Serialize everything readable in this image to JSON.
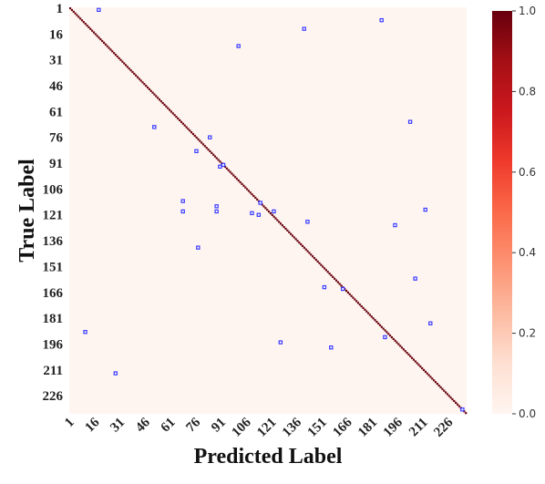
{
  "chart_data": {
    "type": "heatmap",
    "title": "",
    "xlabel": "Predicted Label",
    "ylabel": "True Label",
    "n_classes": 236,
    "x_ticks": [
      "1",
      "16",
      "31",
      "46",
      "61",
      "76",
      "91",
      "106",
      "121",
      "136",
      "151",
      "166",
      "181",
      "196",
      "211",
      "226"
    ],
    "y_ticks": [
      "1",
      "16",
      "31",
      "46",
      "61",
      "76",
      "91",
      "106",
      "121",
      "136",
      "151",
      "166",
      "181",
      "196",
      "211",
      "226"
    ],
    "colorbar": {
      "ticks": [
        "0.0",
        "0.2",
        "0.4",
        "0.6",
        "0.8",
        "1.0"
      ],
      "min": 0.0,
      "max": 1.0,
      "colormap": "Reds",
      "low_color": "#fff5f0",
      "high_color": "#67000d"
    },
    "diagonal_value": 1.0,
    "highlight_color": "#3a3aff",
    "off_diagonal_points": [
      {
        "true": 2,
        "pred": 18
      },
      {
        "true": 8,
        "pred": 186
      },
      {
        "true": 13,
        "pred": 140
      },
      {
        "true": 23,
        "pred": 101
      },
      {
        "true": 67,
        "pred": 203
      },
      {
        "true": 70,
        "pred": 51
      },
      {
        "true": 76,
        "pred": 84
      },
      {
        "true": 84,
        "pred": 76
      },
      {
        "true": 92,
        "pred": 92
      },
      {
        "true": 93,
        "pred": 90
      },
      {
        "true": 113,
        "pred": 68
      },
      {
        "true": 114,
        "pred": 114
      },
      {
        "true": 116,
        "pred": 88
      },
      {
        "true": 118,
        "pred": 212
      },
      {
        "true": 119,
        "pred": 122
      },
      {
        "true": 119,
        "pred": 68
      },
      {
        "true": 119,
        "pred": 88
      },
      {
        "true": 120,
        "pred": 109
      },
      {
        "true": 121,
        "pred": 113
      },
      {
        "true": 125,
        "pred": 142
      },
      {
        "true": 127,
        "pred": 194
      },
      {
        "true": 140,
        "pred": 77
      },
      {
        "true": 158,
        "pred": 206
      },
      {
        "true": 163,
        "pred": 152
      },
      {
        "true": 164,
        "pred": 163
      },
      {
        "true": 184,
        "pred": 215
      },
      {
        "true": 189,
        "pred": 10
      },
      {
        "true": 192,
        "pred": 188
      },
      {
        "true": 195,
        "pred": 126
      },
      {
        "true": 198,
        "pred": 156
      },
      {
        "true": 213,
        "pred": 28
      },
      {
        "true": 234,
        "pred": 234
      }
    ]
  }
}
